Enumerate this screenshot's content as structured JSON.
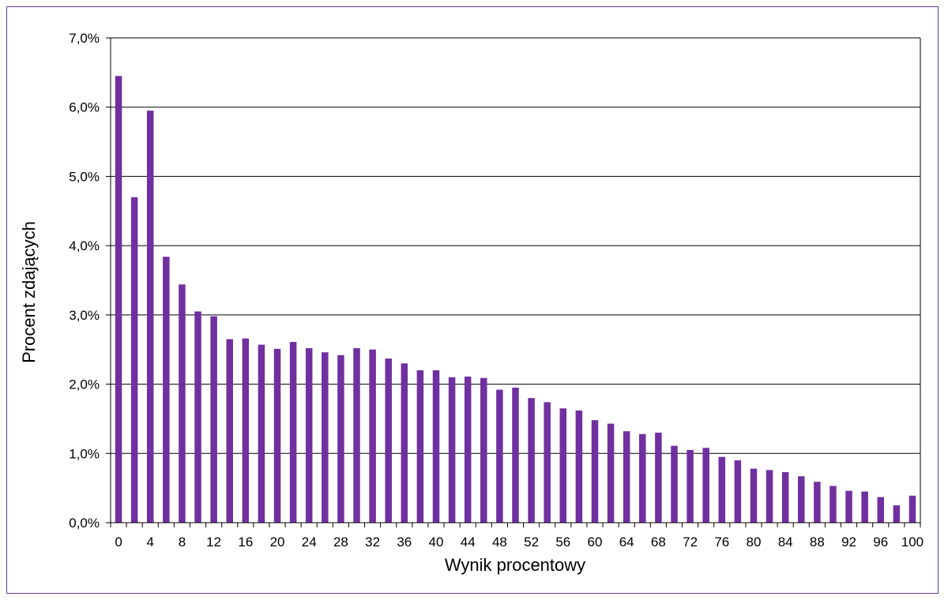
{
  "chart_data": {
    "type": "bar",
    "xlabel": "Wynik procentowy",
    "ylabel": "Procent zdających",
    "ylim": [
      0,
      7
    ],
    "ytick_values": [
      0,
      1,
      2,
      3,
      4,
      5,
      6,
      7
    ],
    "ytick_labels": [
      "0,0%",
      "1,0%",
      "2,0%",
      "3,0%",
      "4,0%",
      "5,0%",
      "6,0%",
      "7,0%"
    ],
    "xtick_labels": [
      "0",
      "4",
      "8",
      "12",
      "16",
      "20",
      "24",
      "28",
      "32",
      "36",
      "40",
      "44",
      "48",
      "52",
      "56",
      "60",
      "64",
      "68",
      "72",
      "76",
      "80",
      "84",
      "88",
      "92",
      "96",
      "100"
    ],
    "grid": true,
    "legend": "none",
    "bar_color": "#7030a0",
    "frame_color": "#6a3d8f",
    "categories": [
      0,
      2,
      4,
      6,
      8,
      10,
      12,
      14,
      16,
      18,
      20,
      22,
      24,
      26,
      28,
      30,
      32,
      34,
      36,
      38,
      40,
      42,
      44,
      46,
      48,
      50,
      52,
      54,
      56,
      58,
      60,
      62,
      64,
      66,
      68,
      70,
      72,
      74,
      76,
      78,
      80,
      82,
      84,
      86,
      88,
      90,
      92,
      94,
      96,
      98,
      100
    ],
    "values": [
      6.45,
      4.7,
      5.95,
      3.84,
      3.44,
      3.05,
      2.98,
      2.65,
      2.66,
      2.57,
      2.51,
      2.61,
      2.52,
      2.46,
      2.42,
      2.52,
      2.5,
      2.37,
      2.3,
      2.2,
      2.2,
      2.1,
      2.11,
      2.09,
      1.92,
      1.95,
      1.8,
      1.74,
      1.65,
      1.62,
      1.48,
      1.43,
      1.32,
      1.28,
      1.3,
      1.11,
      1.05,
      1.08,
      0.95,
      0.9,
      0.78,
      0.76,
      0.73,
      0.67,
      0.59,
      0.53,
      0.46,
      0.45,
      0.37,
      0.25,
      0.39
    ]
  }
}
